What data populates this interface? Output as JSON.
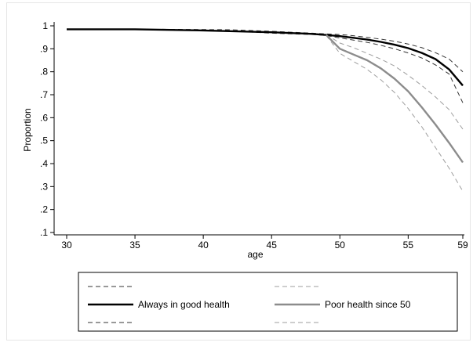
{
  "chart_data": {
    "type": "line",
    "title": "",
    "xlabel": "age",
    "ylabel": "Proportion",
    "xlim": [
      30,
      59
    ],
    "ylim": [
      0.1,
      1.0
    ],
    "x_ticks": [
      30,
      35,
      40,
      45,
      50,
      55,
      59
    ],
    "x_tick_labels": [
      "30",
      "35",
      "40",
      "45",
      "50",
      "55",
      "59"
    ],
    "y_ticks": [
      0.1,
      0.2,
      0.3,
      0.4,
      0.5,
      0.6,
      0.7,
      0.8,
      0.9,
      1.0
    ],
    "y_tick_labels": [
      ".1",
      ".2",
      ".3",
      ".4",
      ".5",
      ".6",
      ".7",
      ".8",
      ".9",
      "1"
    ],
    "grid": false,
    "legend_position": "bottom",
    "colors": {
      "good": "#000000",
      "poor": "#8c8c8c",
      "good_ci": "#333333",
      "poor_ci": "#9e9e9e",
      "axis": "#000000"
    },
    "series": [
      {
        "key": "good_upper",
        "name": "",
        "style": "dashed",
        "color_key": "good_ci",
        "legend_slot": "col1-top",
        "x": [
          37,
          42,
          45,
          48,
          49,
          50,
          51,
          52,
          53,
          54,
          55,
          56,
          57,
          58,
          59
        ],
        "y": [
          0.985,
          0.983,
          0.976,
          0.968,
          0.965,
          0.962,
          0.957,
          0.95,
          0.942,
          0.933,
          0.921,
          0.905,
          0.883,
          0.855,
          0.8
        ]
      },
      {
        "key": "good",
        "name": "Always in good health",
        "style": "solid",
        "color_key": "good",
        "legend_slot": "col1-mid",
        "x": [
          30,
          35,
          40,
          45,
          48,
          49,
          50,
          51,
          52,
          53,
          54,
          55,
          56,
          57,
          58,
          59
        ],
        "y": [
          0.985,
          0.985,
          0.98,
          0.972,
          0.965,
          0.96,
          0.955,
          0.948,
          0.94,
          0.93,
          0.918,
          0.903,
          0.882,
          0.855,
          0.81,
          0.74
        ]
      },
      {
        "key": "good_lower",
        "name": "",
        "style": "dashed",
        "color_key": "good_ci",
        "legend_slot": "col1-bottom",
        "x": [
          37,
          42,
          45,
          48,
          49,
          50,
          51,
          52,
          53,
          54,
          55,
          56,
          57,
          58,
          59
        ],
        "y": [
          0.982,
          0.978,
          0.968,
          0.962,
          0.958,
          0.947,
          0.938,
          0.928,
          0.915,
          0.9,
          0.882,
          0.86,
          0.83,
          0.79,
          0.665
        ]
      },
      {
        "key": "poor_upper",
        "name": "",
        "style": "dashed",
        "color_key": "poor_ci",
        "legend_slot": "col2-top",
        "x": [
          49,
          50,
          51,
          52,
          53,
          54,
          55,
          56,
          57,
          58,
          59
        ],
        "y": [
          0.962,
          0.925,
          0.905,
          0.88,
          0.855,
          0.825,
          0.785,
          0.74,
          0.69,
          0.635,
          0.55
        ]
      },
      {
        "key": "poor",
        "name": "Poor health since 50",
        "style": "solid",
        "color_key": "poor",
        "legend_slot": "col2-mid",
        "x": [
          49,
          50,
          51,
          52,
          53,
          54,
          55,
          56,
          57,
          58,
          59
        ],
        "y": [
          0.96,
          0.9,
          0.875,
          0.85,
          0.815,
          0.77,
          0.715,
          0.645,
          0.57,
          0.49,
          0.405
        ]
      },
      {
        "key": "poor_lower",
        "name": "",
        "style": "dashed",
        "color_key": "poor_ci",
        "legend_slot": "col2-bottom",
        "x": [
          49,
          50,
          51,
          52,
          53,
          54,
          55,
          56,
          57,
          58,
          59
        ],
        "y": [
          0.958,
          0.88,
          0.845,
          0.81,
          0.765,
          0.71,
          0.64,
          0.56,
          0.47,
          0.38,
          0.28
        ]
      }
    ]
  }
}
